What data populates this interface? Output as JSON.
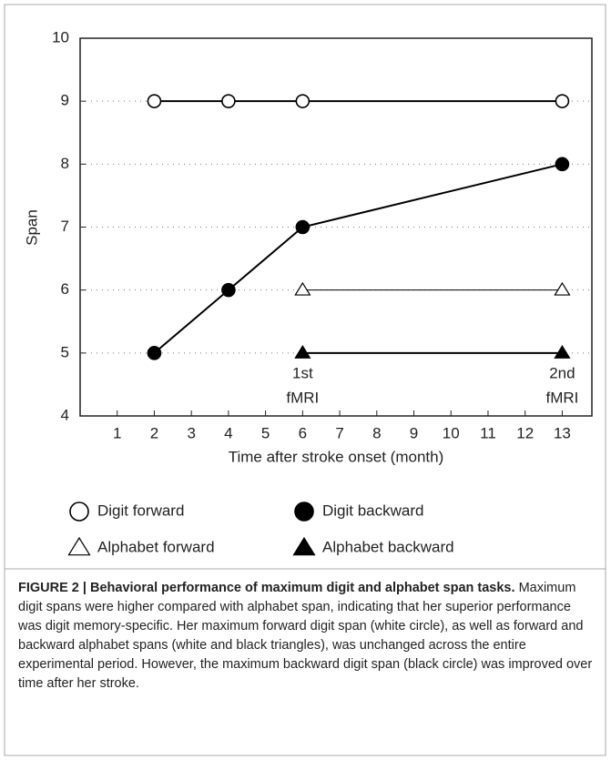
{
  "chart_data": {
    "type": "line",
    "y_label": "Span",
    "x_label": "Time after stroke onset (month)",
    "xlim": [
      0,
      13.8
    ],
    "xticks": [
      1,
      2,
      3,
      4,
      5,
      6,
      7,
      8,
      9,
      10,
      11,
      12,
      13
    ],
    "ylim": [
      4,
      10
    ],
    "yticks": [
      4,
      5,
      6,
      7,
      8,
      9,
      10
    ],
    "grid": true,
    "series": [
      {
        "name": "Digit forward",
        "marker": "circle",
        "filled": false,
        "color": "#000000",
        "line_width": 2,
        "x": [
          2,
          4,
          6,
          13
        ],
        "values": [
          9,
          9,
          9,
          9
        ]
      },
      {
        "name": "Digit backward",
        "marker": "circle",
        "filled": true,
        "color": "#000000",
        "line_width": 2,
        "x": [
          2,
          4,
          6,
          13
        ],
        "values": [
          5,
          6,
          7,
          8
        ]
      },
      {
        "name": "Alphabet forward",
        "marker": "triangle",
        "filled": false,
        "color": "#000000",
        "line_width": 1,
        "x": [
          6,
          13
        ],
        "values": [
          6,
          6
        ]
      },
      {
        "name": "Alphabet backward",
        "marker": "triangle",
        "filled": true,
        "color": "#000000",
        "line_width": 2,
        "x": [
          6,
          13
        ],
        "values": [
          5,
          5
        ]
      }
    ],
    "annotations": [
      {
        "x": 6,
        "lines": [
          "1st",
          "fMRI"
        ]
      },
      {
        "x": 13,
        "lines": [
          "2nd",
          "fMRI"
        ]
      }
    ]
  },
  "caption": {
    "title": "FIGURE 2 | Behavioral performance of maximum digit and alphabet span tasks.",
    "text": "Maximum digit spans were higher compared with alphabet span, indicating that her superior performance was digit memory-specific. Her maximum forward digit span (white circle), as well as forward and backward alphabet spans (white and black triangles), was unchanged across the entire experimental period. However, the maximum backward digit span (black circle) was improved over time after her stroke."
  }
}
